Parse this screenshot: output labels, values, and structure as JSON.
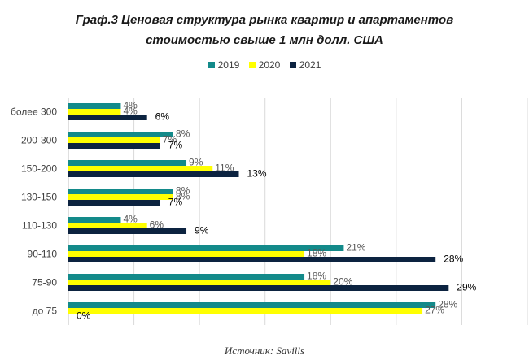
{
  "chart_data": {
    "type": "bar",
    "orientation": "horizontal",
    "title_line1": "Граф.3 Ценовая структура рынка квартир и апартаментов",
    "title_line2": "стоимостью свыше 1 млн долл. США",
    "source": "Источник: Savills",
    "categories": [
      "более 300",
      "200-300",
      "150-200",
      "130-150",
      "110-130",
      "90-110",
      "75-90",
      "до 75"
    ],
    "series": [
      {
        "name": "2019",
        "color": "#138a8a",
        "values": [
          4,
          8,
          9,
          8,
          4,
          21,
          18,
          28
        ],
        "labels": [
          "4%",
          "8%",
          "9%",
          "8%",
          "4%",
          "21%",
          "18%",
          "28%"
        ]
      },
      {
        "name": "2020",
        "color": "#ffff00",
        "values": [
          4,
          7,
          11,
          8,
          6,
          18,
          20,
          27
        ],
        "labels": [
          "4%",
          "7%",
          "11%",
          "8%",
          "6%",
          "18%",
          "20%",
          "27%"
        ]
      },
      {
        "name": "2021",
        "color": "#0c2340",
        "values": [
          6,
          7,
          13,
          7,
          9,
          28,
          29,
          0
        ],
        "labels": [
          "6%",
          "7%",
          "13%",
          "7%",
          "9%",
          "28%",
          "29%",
          "0%"
        ]
      }
    ],
    "xlim": [
      0,
      35
    ],
    "grid": true,
    "legend_position": "top"
  }
}
